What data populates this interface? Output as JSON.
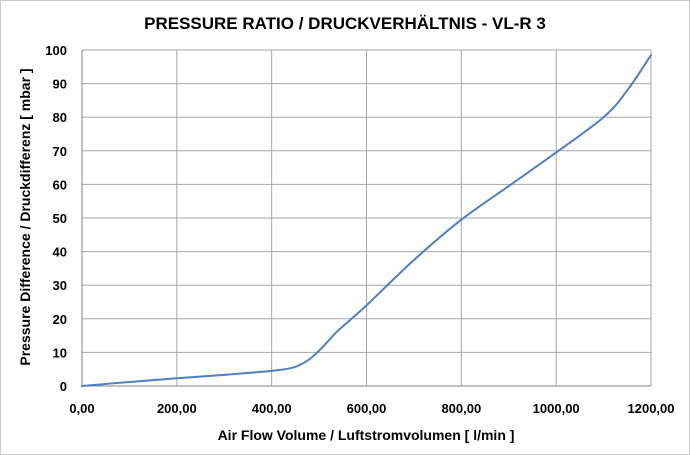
{
  "chart_data": {
    "type": "line",
    "title": "PRESSURE RATIO / DRUCKVERHÄLTNIS - VL-R 3",
    "xlabel": "Air Flow Volume / Luftstromvolumen [ l/min ]",
    "ylabel": "Pressure Difference / Druckdifferenz [ mbar ]",
    "xlim": [
      0,
      1200
    ],
    "ylim": [
      0,
      100
    ],
    "x_ticks": [
      0,
      200,
      400,
      600,
      800,
      1000,
      1200
    ],
    "x_tick_labels": [
      "0,00",
      "200,00",
      "400,00",
      "600,00",
      "800,00",
      "1000,00",
      "1200,00"
    ],
    "y_ticks": [
      0,
      10,
      20,
      30,
      40,
      50,
      60,
      70,
      80,
      90,
      100
    ],
    "y_tick_labels": [
      "0",
      "10",
      "20",
      "30",
      "40",
      "50",
      "60",
      "70",
      "80",
      "90",
      "100"
    ],
    "grid": true,
    "series": [
      {
        "color": "#4f7fc0",
        "x": [
          0,
          100,
          200,
          300,
          400,
          440,
          460,
          480,
          500,
          520,
          540,
          600,
          700,
          800,
          900,
          1000,
          1100,
          1150,
          1200
        ],
        "y": [
          0,
          1.2,
          2.3,
          3.3,
          4.5,
          5.3,
          6.3,
          8.0,
          10.5,
          13.5,
          16.5,
          24.0,
          37.5,
          49.5,
          59.5,
          69.5,
          80.0,
          88.0,
          98.5
        ]
      }
    ]
  }
}
